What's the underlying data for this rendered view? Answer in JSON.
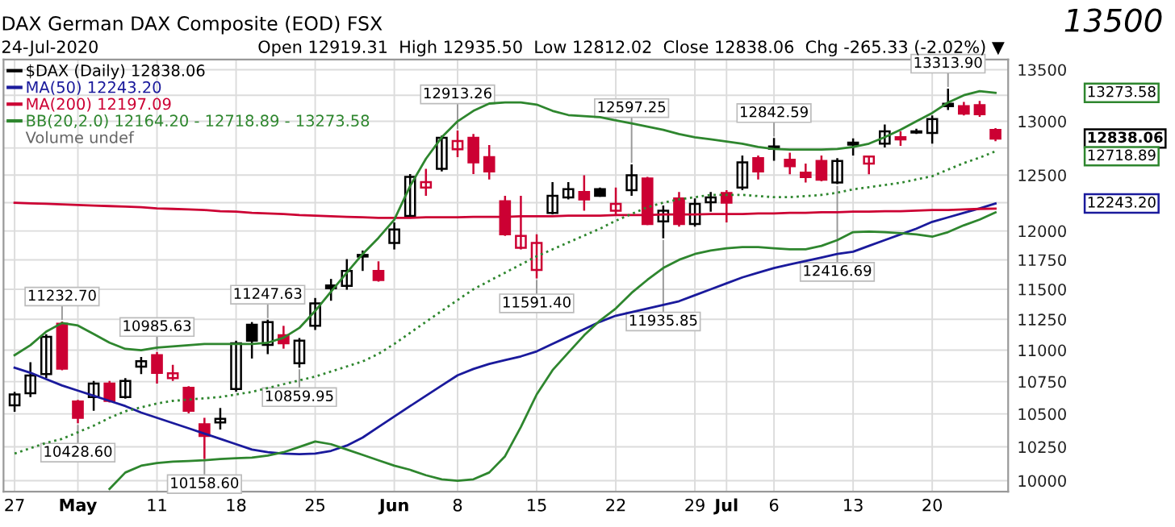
{
  "chart_data": {
    "type": "candlestick",
    "title": "DAX German DAX Composite (EOD) FSX",
    "subtitle": "Open 12919.31  High 12935.50  Low 12812.02  Close 12838.06  Chg -265.33 (-2.02%) ▼",
    "annotations": [
      "24-Jul-2020",
      "$DAX (Daily) 12838.06",
      "Volume undef",
      "13500",
      {
        "text": "11232.70",
        "y": 11232.7
      },
      {
        "text": "10428.60",
        "y": 10428.6
      },
      {
        "text": "10985.63",
        "y": 10985.63
      },
      {
        "text": "10158.60",
        "y": 10158.6
      },
      {
        "text": "11247.63",
        "y": 11247.63
      },
      {
        "text": "10859.95",
        "y": 10859.95
      },
      {
        "text": "12913.26",
        "y": 12913.26
      },
      {
        "text": "11591.40",
        "y": 11591.4
      },
      {
        "text": "12597.25",
        "y": 12597.25
      },
      {
        "text": "11935.85",
        "y": 11935.85
      },
      {
        "text": "12842.59",
        "y": 12842.59
      },
      {
        "text": "12416.69",
        "y": 12416.69
      },
      {
        "text": "13313.90",
        "y": 13313.9
      },
      "13273.58",
      "12838.06",
      "12718.89",
      "12243.20"
    ],
    "categories": [
      "27",
      null,
      null,
      null,
      "May",
      null,
      null,
      null,
      null,
      "11",
      null,
      null,
      null,
      null,
      "18",
      null,
      null,
      null,
      null,
      "25",
      null,
      null,
      null,
      null,
      "Jun",
      null,
      null,
      null,
      "8",
      null,
      null,
      null,
      null,
      "15",
      null,
      null,
      null,
      null,
      "22",
      null,
      null,
      null,
      null,
      "29",
      null,
      "Jul",
      null,
      null,
      "6",
      null,
      null,
      null,
      null,
      "13",
      null,
      null,
      null,
      null,
      "20",
      null,
      null,
      null,
      null
    ],
    "ohlc": [
      [
        10566,
        10671,
        10516,
        10650
      ],
      [
        10659,
        10903,
        10629,
        10798
      ],
      [
        10810,
        11128,
        10777,
        11107
      ],
      [
        11215,
        11232.7,
        10840,
        10852
      ],
      [
        10596,
        10608,
        10428.6,
        10470
      ],
      [
        10629,
        10756,
        10524,
        10735
      ],
      [
        10735,
        10756,
        10587,
        10600
      ],
      [
        10629,
        10777,
        10617,
        10756
      ],
      [
        10869,
        10946,
        10810,
        10912
      ],
      [
        10960,
        10985.63,
        10735,
        10819
      ],
      [
        10777,
        10882,
        10756,
        10815
      ],
      [
        10701,
        10714,
        10503,
        10524
      ],
      [
        10421,
        10470,
        10158.6,
        10332
      ],
      [
        10434,
        10545,
        10381,
        10462
      ],
      [
        10693,
        11076,
        10671,
        11055
      ],
      [
        11206,
        11228,
        10933,
        11076
      ],
      [
        11042,
        11247.63,
        10968,
        11228
      ],
      [
        11120,
        11197,
        11012,
        11055
      ],
      [
        10895,
        11098,
        10859.95,
        11076
      ],
      [
        11197,
        11427,
        11163,
        11382
      ],
      [
        11532,
        11587,
        11404,
        11509
      ],
      [
        11528,
        11756,
        11496,
        11655
      ],
      [
        11792,
        11830,
        11655,
        11778
      ],
      [
        11655,
        11737,
        11564,
        11578
      ],
      [
        11896,
        12075,
        11839,
        12014
      ],
      [
        12132,
        12509,
        12113,
        12484
      ],
      [
        12386,
        12557,
        12313,
        12435
      ],
      [
        12557,
        12866,
        12533,
        12845
      ],
      [
        12738,
        12913.26,
        12665,
        12815
      ],
      [
        12845,
        12881,
        12509,
        12616
      ],
      [
        12665,
        12777,
        12460,
        12533
      ],
      [
        12264,
        12313,
        11957,
        11971
      ],
      [
        11853,
        12313,
        11839,
        11957
      ],
      [
        11664,
        11971,
        11591.4,
        11896
      ],
      [
        12160,
        12435,
        12146,
        12313
      ],
      [
        12298,
        12435,
        12280,
        12372
      ],
      [
        12347,
        12499,
        12179,
        12280
      ],
      [
        12372,
        12386,
        12303,
        12313
      ],
      [
        12179,
        12386,
        12146,
        12240
      ],
      [
        12362,
        12597.25,
        12313,
        12499
      ],
      [
        12469,
        12484,
        12052,
        12061
      ],
      [
        12085,
        12226,
        11935.85,
        12179
      ],
      [
        12289,
        12347,
        12038,
        12061
      ],
      [
        12061,
        12289,
        12038,
        12240
      ],
      [
        12254,
        12347,
        12170,
        12298
      ],
      [
        12337,
        12362,
        12075,
        12250
      ],
      [
        12386,
        12680,
        12362,
        12616
      ],
      [
        12655,
        12680,
        12460,
        12533
      ],
      [
        12763,
        12842.59,
        12631,
        12743
      ],
      [
        12640,
        12705,
        12507,
        12581
      ],
      [
        12522,
        12606,
        12433,
        12482
      ],
      [
        12630,
        12680,
        12443,
        12458
      ],
      [
        12433,
        12655,
        12416.69,
        12630
      ],
      [
        12800,
        12840,
        12680,
        12780
      ],
      [
        12605,
        12680,
        12507,
        12670
      ],
      [
        12790,
        12971,
        12755,
        12905
      ],
      [
        12850,
        12905,
        12770,
        12830
      ],
      [
        12905,
        12930,
        12880,
        12895
      ],
      [
        12890,
        13057,
        12790,
        13022
      ],
      [
        13169,
        13313.9,
        13108,
        13144
      ],
      [
        13144,
        13185,
        13057,
        13073
      ],
      [
        13154,
        13195,
        13042,
        13068
      ],
      [
        12919.31,
        12935.5,
        12812.02,
        12838.06
      ]
    ],
    "colors": [
      "#000000",
      "#000000",
      "#000000",
      "#cc0033",
      "#cc0033",
      "#000000",
      "#cc0033",
      "#000000",
      "#000000",
      "#cc0033",
      "#cc0033",
      "#cc0033",
      "#cc0033",
      "#000000",
      "#000000",
      "#000000",
      "#000000",
      "#cc0033",
      "#000000",
      "#000000",
      "#000000",
      "#000000",
      "#000000",
      "#cc0033",
      "#000000",
      "#000000",
      "#cc0033",
      "#000000",
      "#cc0033",
      "#cc0033",
      "#cc0033",
      "#cc0033",
      "#cc0033",
      "#cc0033",
      "#000000",
      "#000000",
      "#cc0033",
      "#000000",
      "#cc0033",
      "#000000",
      "#cc0033",
      "#000000",
      "#cc0033",
      "#000000",
      "#000000",
      "#cc0033",
      "#000000",
      "#cc0033",
      "#000000",
      "#cc0033",
      "#cc0033",
      "#cc0033",
      "#000000",
      "#000000",
      "#cc0033",
      "#000000",
      "#cc0033",
      "#000000",
      "#000000",
      "#000000",
      "#cc0033",
      "#cc0033",
      "#cc0033"
    ],
    "series": [
      {
        "type": "line",
        "name": "MA(50) 12243.20",
        "color": "#1a1a9c",
        "line_style": "solid",
        "values": [
          10860,
          10820,
          10770,
          10720,
          10680,
          10640,
          10600,
          10560,
          10510,
          10470,
          10430,
          10390,
          10350,
          10310,
          10270,
          10230,
          10210,
          10200,
          10195,
          10200,
          10220,
          10260,
          10320,
          10400,
          10480,
          10560,
          10640,
          10720,
          10800,
          10850,
          10890,
          10920,
          10950,
          10990,
          11050,
          11110,
          11170,
          11230,
          11280,
          11310,
          11340,
          11370,
          11400,
          11450,
          11500,
          11550,
          11600,
          11640,
          11680,
          11710,
          11740,
          11770,
          11800,
          11820,
          11870,
          11920,
          11970,
          12020,
          12080,
          12120,
          12160,
          12200,
          12243.2
        ]
      },
      {
        "type": "line",
        "name": "MA(200) 12197.09",
        "color": "#cc0033",
        "line_style": "solid",
        "values": [
          12250,
          12245,
          12240,
          12235,
          12230,
          12225,
          12220,
          12215,
          12210,
          12200,
          12195,
          12190,
          12185,
          12175,
          12170,
          12160,
          12155,
          12150,
          12140,
          12135,
          12130,
          12125,
          12120,
          12115,
          12115,
          12115,
          12120,
          12120,
          12120,
          12125,
          12125,
          12125,
          12130,
          12130,
          12130,
          12135,
          12135,
          12135,
          12140,
          12140,
          12140,
          12145,
          12145,
          12145,
          12150,
          12150,
          12150,
          12155,
          12155,
          12160,
          12160,
          12165,
          12165,
          12170,
          12170,
          12175,
          12175,
          12180,
          12185,
          12185,
          12190,
          12195,
          12197.09
        ]
      },
      {
        "type": "line",
        "name": "BB(20,2.0) 12164.20 - 12718.89 - 13273.58",
        "color": "#2e862e",
        "line_style": "solid",
        "values": [
          10960,
          11040,
          11150,
          11220,
          11200,
          11130,
          11060,
          11010,
          11000,
          11020,
          11030,
          11040,
          11050,
          11050,
          11050,
          11050,
          11060,
          11100,
          11180,
          11320,
          11480,
          11640,
          11800,
          11940,
          12100,
          12400,
          12650,
          12850,
          13000,
          13100,
          13170,
          13180,
          13180,
          13160,
          13100,
          13060,
          13050,
          13040,
          13010,
          12980,
          12950,
          12920,
          12880,
          12850,
          12830,
          12810,
          12790,
          12760,
          12740,
          12735,
          12735,
          12735,
          12740,
          12760,
          12790,
          12850,
          12920,
          13000,
          13080,
          13180,
          13250,
          13290,
          13273.58
        ]
      },
      {
        "type": "line",
        "color": "#2e862e",
        "line_style": "dotted",
        "values": [
          10200,
          10240,
          10280,
          10310,
          10360,
          10410,
          10470,
          10520,
          10550,
          10580,
          10600,
          10610,
          10620,
          10630,
          10650,
          10670,
          10700,
          10730,
          10760,
          10790,
          10830,
          10870,
          10910,
          10970,
          11050,
          11140,
          11230,
          11320,
          11410,
          11500,
          11570,
          11640,
          11710,
          11780,
          11840,
          11900,
          11960,
          12020,
          12090,
          12150,
          12210,
          12250,
          12280,
          12300,
          12320,
          12320,
          12320,
          12310,
          12300,
          12300,
          12310,
          12320,
          12340,
          12370,
          12390,
          12410,
          12430,
          12460,
          12490,
          12550,
          12610,
          12660,
          12718.89
        ]
      },
      {
        "type": "line",
        "color": "#2e862e",
        "line_style": "solid",
        "values": [
          null,
          null,
          null,
          null,
          null,
          null,
          9940,
          10060,
          10110,
          10130,
          10140,
          10145,
          10150,
          10160,
          10165,
          10170,
          10185,
          10210,
          10250,
          10290,
          10270,
          10230,
          10190,
          10150,
          10110,
          10080,
          10040,
          10010,
          10000,
          10010,
          10060,
          10180,
          10400,
          10650,
          10840,
          10980,
          11120,
          11240,
          11340,
          11470,
          11580,
          11680,
          11750,
          11800,
          11830,
          11850,
          11860,
          11860,
          11850,
          11840,
          11840,
          11870,
          11920,
          11990,
          11995,
          11990,
          11980,
          11970,
          11950,
          11990,
          12050,
          12100,
          12164.2
        ]
      }
    ],
    "log": true,
    "ylim": [
      9920,
      13600
    ],
    "yticks": [
      10000,
      10250,
      10500,
      10750,
      11000,
      11250,
      11500,
      11750,
      12000,
      {
        "value": 12250,
        "label": null
      },
      12500,
      {
        "value": 12750,
        "label": null
      },
      13000,
      {
        "value": 13250,
        "label": null
      },
      13500
    ],
    "grid": true,
    "legend": "top left"
  }
}
